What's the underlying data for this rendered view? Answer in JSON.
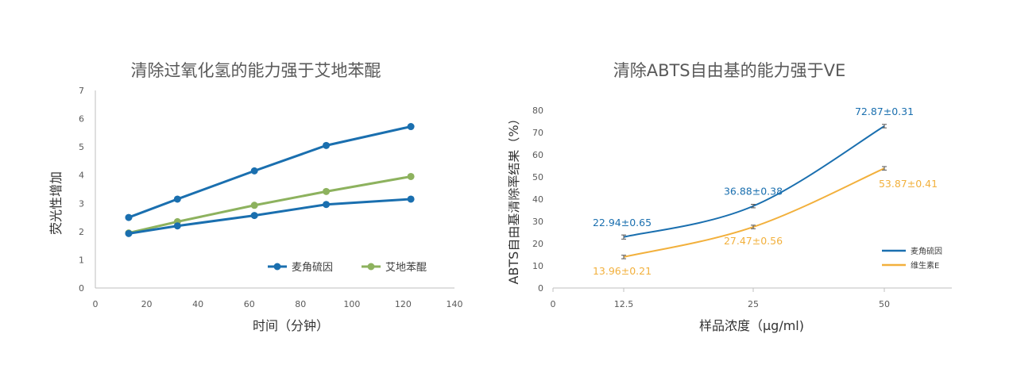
{
  "chart_data": [
    {
      "type": "line",
      "title": "清除过氧化氢的能力强于艾地苯醌",
      "xlabel": "时间（分钟）",
      "ylabel": "荧光性增加",
      "xlim": [
        0,
        140
      ],
      "ylim": [
        0,
        7
      ],
      "xticks": [
        "0",
        "20",
        "40",
        "60",
        "80",
        "100",
        "120",
        "140"
      ],
      "yticks": [
        "0",
        "1",
        "2",
        "3",
        "4",
        "5",
        "6",
        "7"
      ],
      "grid": false,
      "legend_position": "bottom-right",
      "series": [
        {
          "name": "麦角硫因",
          "color": "#1a6faf",
          "x": [
            13,
            32,
            62,
            90,
            123
          ],
          "values": [
            2.5,
            3.15,
            4.15,
            5.05,
            5.72
          ]
        },
        {
          "name": "艾地苯醌",
          "color": "#8db25e",
          "x": [
            13,
            32,
            62,
            90,
            123
          ],
          "values": [
            1.95,
            2.35,
            2.93,
            3.42,
            3.95
          ]
        },
        {
          "name": "",
          "color": "#1a6faf",
          "x": [
            13,
            32,
            62,
            90,
            123
          ],
          "values": [
            1.93,
            2.2,
            2.57,
            2.96,
            3.15
          ]
        }
      ]
    },
    {
      "type": "line",
      "title": "清除ABTS自由基的能力强于VE",
      "xlabel": "样品浓度（μg/ml)",
      "ylabel": "ABTS自由基清除率结果（%）",
      "xlim": [
        0,
        60
      ],
      "ylim": [
        0,
        80
      ],
      "xticks": [
        "0",
        "12.5",
        "25",
        "50"
      ],
      "yticks": [
        "0",
        "10",
        "20",
        "30",
        "40",
        "50",
        "60",
        "70",
        "80"
      ],
      "grid": false,
      "legend_position": "bottom-right",
      "series": [
        {
          "name": "麦角硫因",
          "color": "#1a6faf",
          "x": [
            12.5,
            25,
            50
          ],
          "values": [
            22.94,
            36.88,
            72.87
          ],
          "errors": [
            0.65,
            0.38,
            0.31
          ],
          "labels": [
            "22.94±0.65",
            "36.88±0.38",
            "72.87±0.31"
          ]
        },
        {
          "name": "维生素E",
          "color": "#f2b03c",
          "x": [
            12.5,
            25,
            50
          ],
          "values": [
            13.96,
            27.47,
            53.87
          ],
          "errors": [
            0.21,
            0.56,
            0.41
          ],
          "labels": [
            "13.96±0.21",
            "27.47±0.56",
            "53.87±0.41"
          ]
        }
      ]
    }
  ]
}
